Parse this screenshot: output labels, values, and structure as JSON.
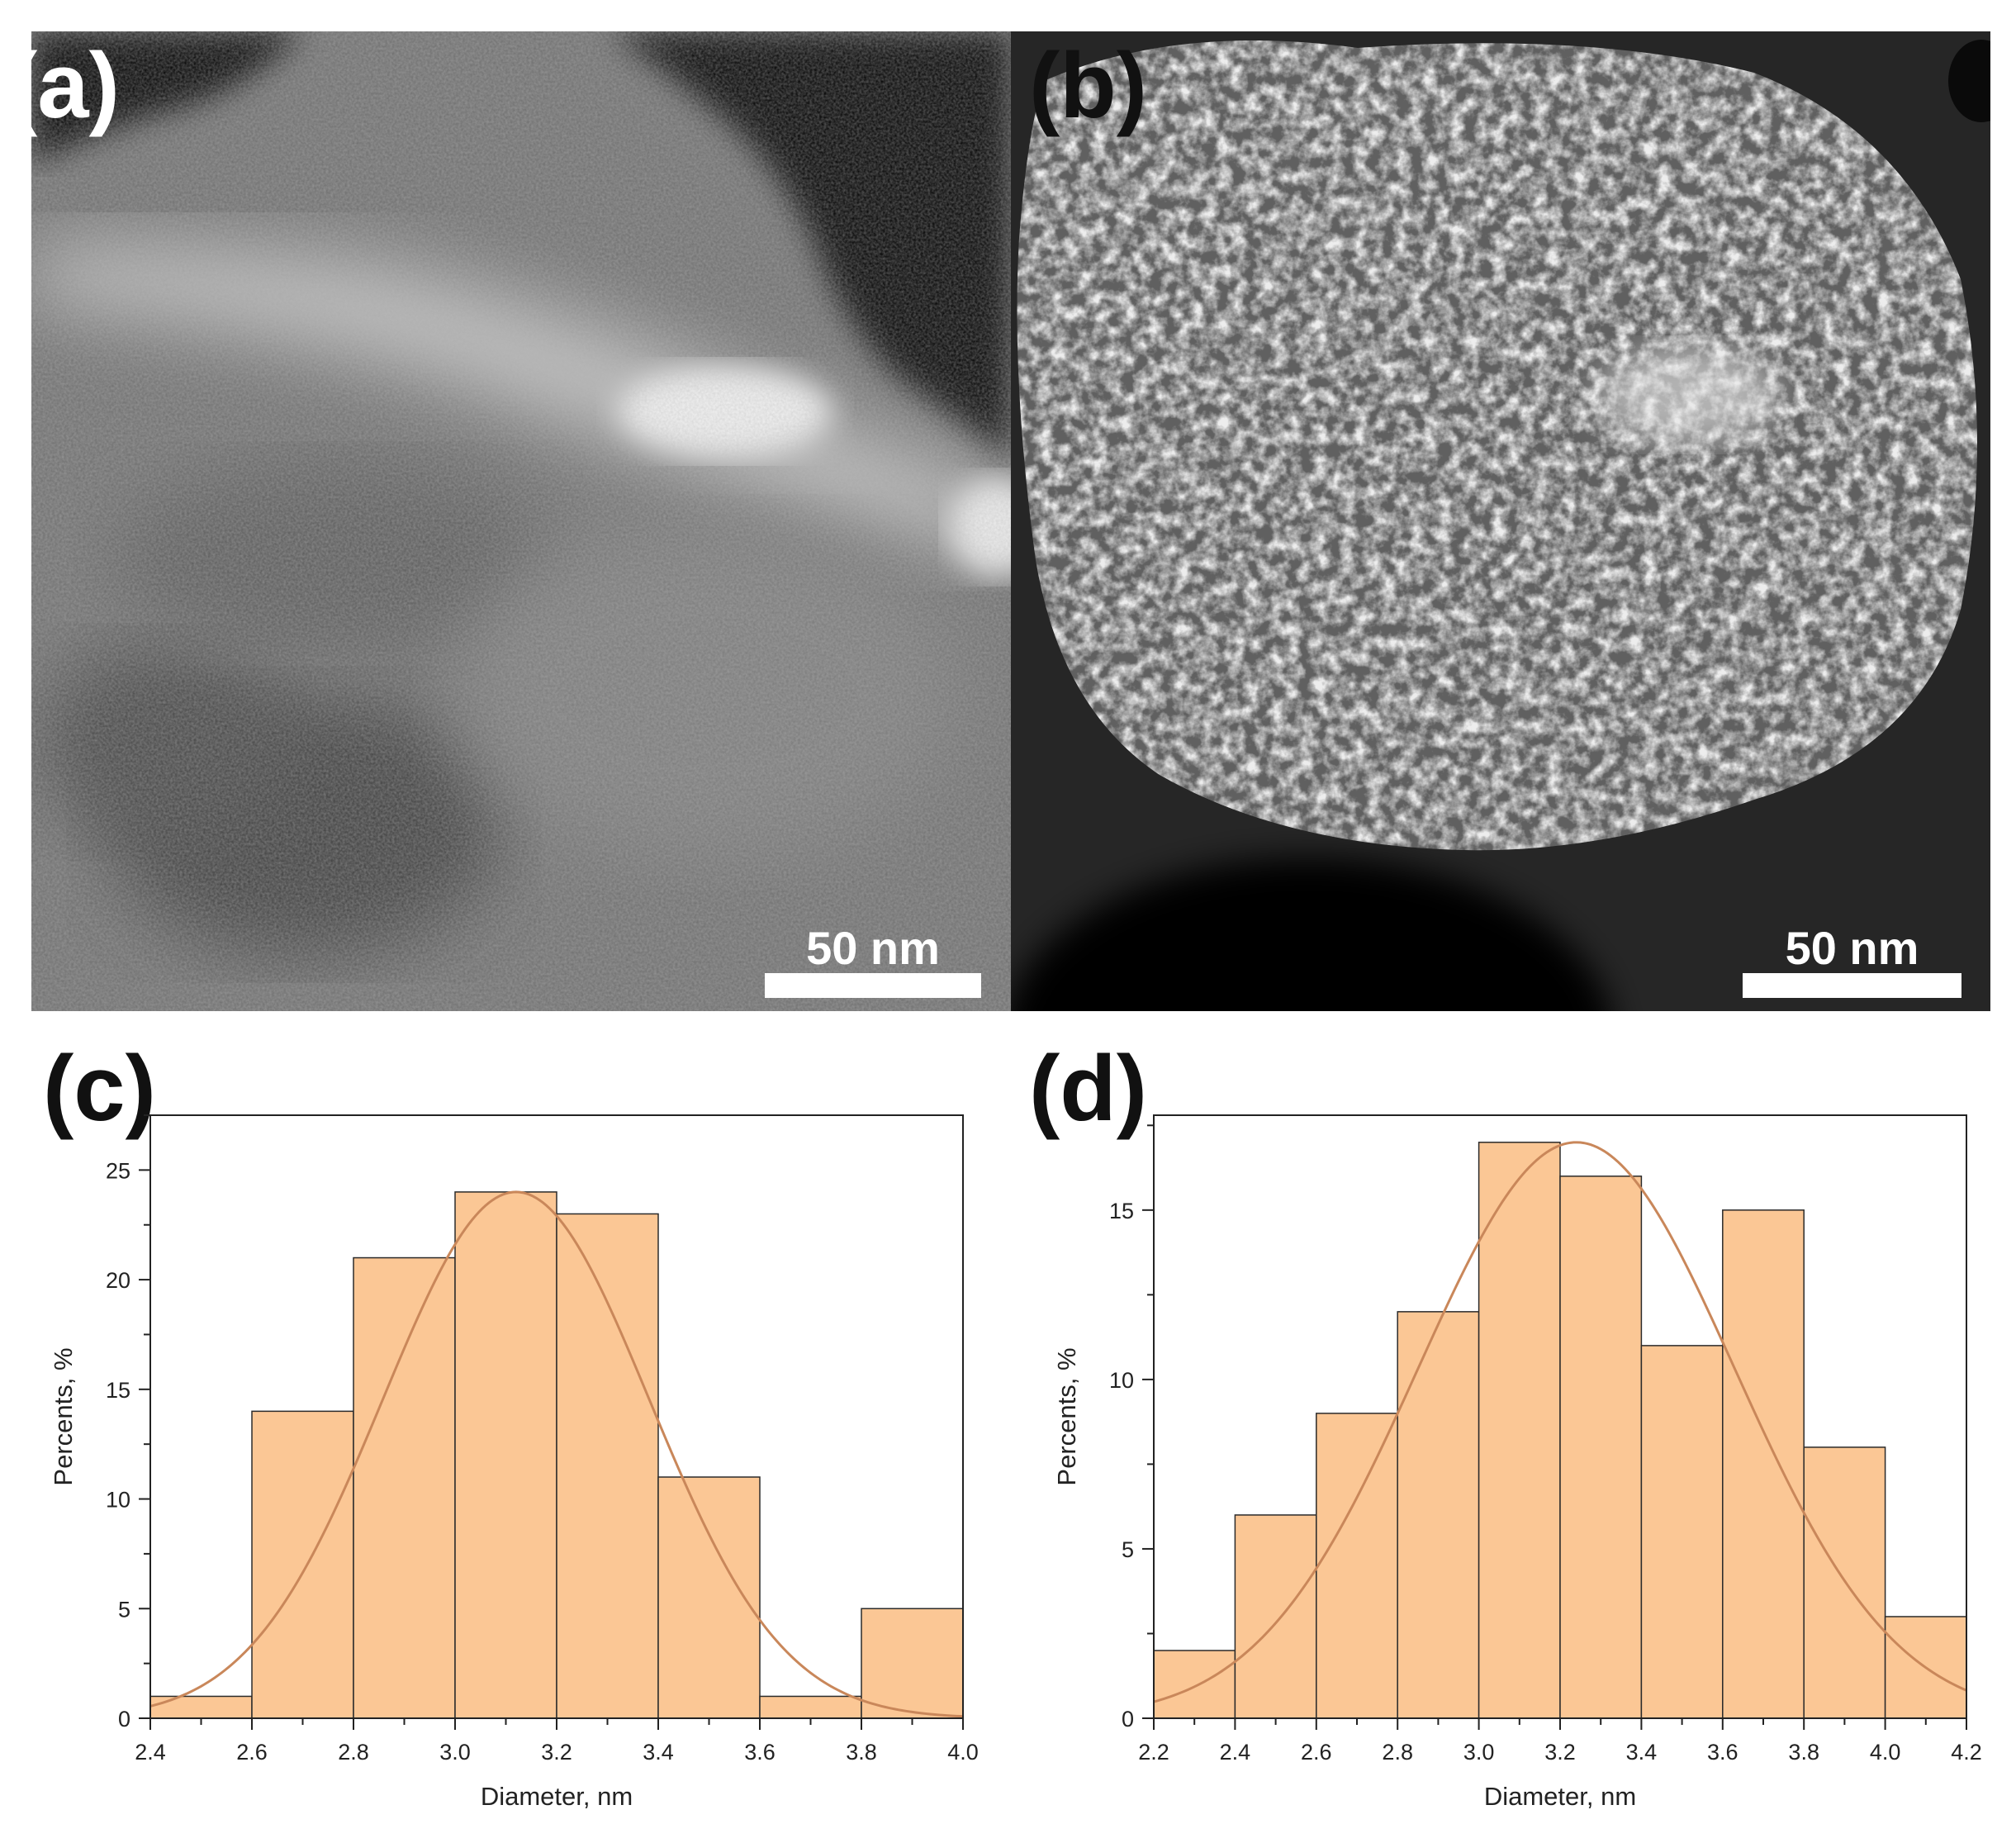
{
  "panels": {
    "a": {
      "label": "(a)",
      "scale_label": "50 nm"
    },
    "b": {
      "label": "(b)",
      "scale_label": "50 nm"
    },
    "c": {
      "label": "(c)"
    },
    "d": {
      "label": "(d)"
    }
  },
  "colors": {
    "bar_fill": "#fbc795",
    "bar_stroke": "#2b2b2b",
    "fit_curve": "#c9875a",
    "axis": "#222222"
  },
  "chart_data": [
    {
      "panel": "c",
      "type": "bar",
      "histogram": true,
      "bin_edges": [
        2.4,
        2.6,
        2.8,
        3.0,
        3.2,
        3.4,
        3.6,
        3.8,
        4.0
      ],
      "values": [
        1,
        14,
        21,
        24,
        23,
        11,
        1,
        5
      ],
      "fit": {
        "kind": "gaussian",
        "mean": 3.12,
        "sigma": 0.262,
        "peak": 24
      },
      "xlabel": "Diameter, nm",
      "ylabel": "Percents, %",
      "xlim": [
        2.4,
        4.0
      ],
      "ylim": [
        0,
        27.5
      ],
      "xticks": [
        "2.4",
        "2.6",
        "2.8",
        "3.0",
        "3.2",
        "3.4",
        "3.6",
        "3.8",
        "4.0"
      ],
      "yticks": [
        "0",
        "5",
        "10",
        "15",
        "20",
        "25"
      ],
      "grid": false
    },
    {
      "panel": "d",
      "type": "bar",
      "histogram": true,
      "bin_edges": [
        2.2,
        2.4,
        2.6,
        2.8,
        3.0,
        3.2,
        3.4,
        3.6,
        3.8,
        4.0,
        4.2
      ],
      "values": [
        2,
        6,
        9,
        12,
        17,
        16,
        11,
        15,
        8,
        3
      ],
      "fit": {
        "kind": "gaussian",
        "mean": 3.24,
        "sigma": 0.39,
        "peak": 17
      },
      "xlabel": "Diameter, nm",
      "ylabel": "Percents, %",
      "xlim": [
        2.2,
        4.2
      ],
      "ylim": [
        0,
        17.8
      ],
      "xticks": [
        "2.2",
        "2.4",
        "2.6",
        "2.8",
        "3.0",
        "3.2",
        "3.4",
        "3.6",
        "3.8",
        "4.0",
        "4.2"
      ],
      "yticks": [
        "0",
        "5",
        "10",
        "15"
      ],
      "grid": false
    }
  ]
}
